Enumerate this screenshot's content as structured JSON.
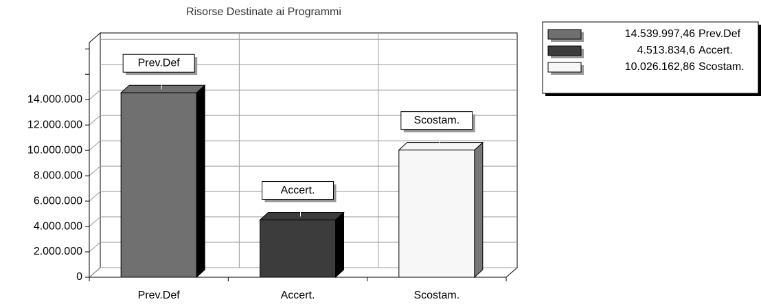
{
  "chart_data": {
    "type": "bar",
    "title": "Risorse Destinate ai Programmi",
    "categories": [
      "Prev.Def",
      "Accert.",
      "Scostam."
    ],
    "values": [
      14539997.46,
      4513834.6,
      10026162.86
    ],
    "value_labels": [
      "14.539.997,46",
      "4.513.834,6",
      "10.026.162,86"
    ],
    "colors": [
      "#707070",
      "#3c3c3c",
      "#f7f7f7"
    ],
    "ylim": [
      0,
      18500000
    ],
    "yticks": [
      0,
      {
        "value": 2000000,
        "label": "2.000.000"
      },
      {
        "value": 4000000,
        "label": "4.000.000"
      },
      {
        "value": 6000000,
        "label": "6.000.000"
      },
      {
        "value": 8000000,
        "label": "8.000.000"
      },
      {
        "value": 10000000,
        "label": "10.000.000"
      },
      {
        "value": 12000000,
        "label": "12.000.000"
      },
      {
        "value": 14000000,
        "label": "14.000.000"
      }
    ],
    "grid": true
  }
}
